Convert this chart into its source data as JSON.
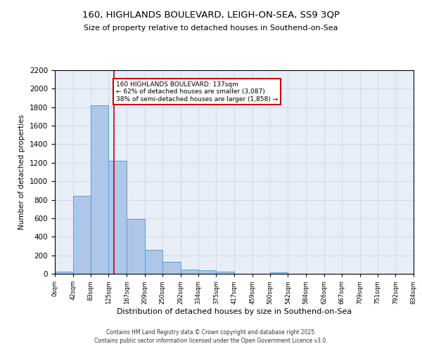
{
  "title_line1": "160, HIGHLANDS BOULEVARD, LEIGH-ON-SEA, SS9 3QP",
  "title_line2": "Size of property relative to detached houses in Southend-on-Sea",
  "xlabel": "Distribution of detached houses by size in Southend-on-Sea",
  "ylabel": "Number of detached properties",
  "bar_values": [
    20,
    845,
    1820,
    1220,
    590,
    255,
    130,
    45,
    35,
    25,
    0,
    0,
    15,
    0,
    0,
    0,
    0,
    0,
    0,
    0
  ],
  "bin_edges": [
    0,
    42,
    83,
    125,
    167,
    209,
    250,
    292,
    334,
    375,
    417,
    459,
    500,
    542,
    584,
    626,
    667,
    709,
    751,
    792,
    834
  ],
  "bar_color": "#aec6e8",
  "bar_edge_color": "#5a9fd4",
  "red_line_x": 137,
  "annotation_text": "160 HIGHLANDS BOULEVARD: 137sqm\n← 62% of detached houses are smaller (3,087)\n38% of semi-detached houses are larger (1,858) →",
  "annotation_box_color": "#ffffff",
  "annotation_border_color": "#cc0000",
  "ylim": [
    0,
    2200
  ],
  "yticks": [
    0,
    200,
    400,
    600,
    800,
    1000,
    1200,
    1400,
    1600,
    1800,
    2000,
    2200
  ],
  "xtick_labels": [
    "0sqm",
    "42sqm",
    "83sqm",
    "125sqm",
    "167sqm",
    "209sqm",
    "250sqm",
    "292sqm",
    "334sqm",
    "375sqm",
    "417sqm",
    "459sqm",
    "500sqm",
    "542sqm",
    "584sqm",
    "626sqm",
    "667sqm",
    "709sqm",
    "751sqm",
    "792sqm",
    "834sqm"
  ],
  "grid_color": "#d0d8e8",
  "background_color": "#e8eef8",
  "footer_text": "Contains HM Land Registry data © Crown copyright and database right 2025.\nContains public sector information licensed under the Open Government Licence v3.0.",
  "fig_bg_color": "#ffffff"
}
